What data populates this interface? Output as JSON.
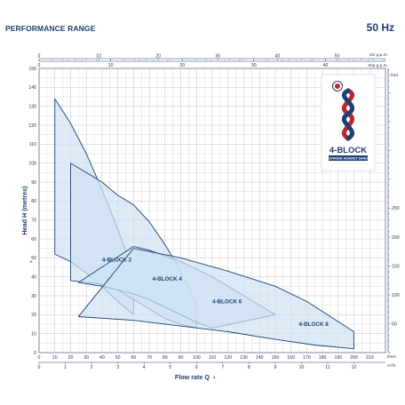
{
  "header": {
    "title": "PERFORMANCE RANGE",
    "frequency": "50 Hz"
  },
  "colors": {
    "accent": "#1f3f73",
    "fill": "#cfe3f3",
    "curve": "#1f3f73",
    "grid": "#c4c4c4"
  },
  "logo": {
    "text": "4-BLOCK",
    "tagline": "STRONG AGAINST SAND"
  },
  "chart_data": {
    "type": "area",
    "xlabel": "Flow rate Q",
    "ylabel": "Head H (metres)",
    "xlim": [
      0,
      220
    ],
    "ylim": [
      0,
      150
    ],
    "x_ticks": [
      0,
      10,
      20,
      30,
      40,
      50,
      60,
      70,
      80,
      90,
      100,
      110,
      120,
      130,
      140,
      150,
      160,
      170,
      180,
      190,
      200,
      210
    ],
    "y_ticks": [
      0,
      10,
      20,
      30,
      40,
      50,
      60,
      70,
      80,
      90,
      100,
      110,
      120,
      130,
      140,
      150
    ],
    "x_unit": "l/min",
    "x_unit_secondary": "m³/h",
    "x_secondary_ticks": [
      0,
      1,
      2,
      3,
      4,
      5,
      6,
      7,
      8,
      9,
      10,
      11,
      12
    ],
    "top_axis_us": {
      "unit": "US g.p.m.",
      "ticks": [
        0,
        10,
        20,
        30,
        40,
        50
      ]
    },
    "top_axis_imp": {
      "unit": "Imp g.p.m.",
      "ticks": [
        0,
        10,
        20,
        30,
        40
      ]
    },
    "right_axis": {
      "unit": "feet",
      "ticks": [
        50,
        100,
        150,
        200,
        250
      ]
    },
    "grid": true,
    "series": [
      {
        "name": "4-BLOCK 2",
        "upper": [
          [
            10,
            134
          ],
          [
            20,
            121
          ],
          [
            30,
            105
          ],
          [
            40,
            86
          ],
          [
            50,
            65
          ],
          [
            60,
            42
          ]
        ],
        "lower": [
          [
            10,
            52
          ],
          [
            20,
            48
          ],
          [
            30,
            42
          ],
          [
            40,
            35
          ],
          [
            50,
            27
          ],
          [
            60,
            20
          ]
        ],
        "label_at": [
          40,
          48
        ]
      },
      {
        "name": "4-BLOCK 4",
        "upper": [
          [
            20,
            100
          ],
          [
            30,
            95
          ],
          [
            40,
            90
          ],
          [
            50,
            83
          ],
          [
            60,
            78
          ],
          [
            70,
            69
          ],
          [
            80,
            57
          ],
          [
            90,
            43
          ],
          [
            100,
            26
          ]
        ],
        "lower": [
          [
            20,
            38
          ],
          [
            40,
            36
          ],
          [
            50,
            33
          ],
          [
            60,
            28
          ],
          [
            70,
            23
          ],
          [
            80,
            18
          ],
          [
            90,
            15
          ],
          [
            100,
            13
          ]
        ],
        "label_at": [
          72,
          38
        ]
      },
      {
        "name": "4-BLOCK 6",
        "upper": [
          [
            60,
            56
          ],
          [
            70,
            54
          ],
          [
            80,
            51
          ],
          [
            90,
            48
          ],
          [
            100,
            44
          ],
          [
            110,
            40
          ],
          [
            120,
            35
          ],
          [
            130,
            30
          ],
          [
            140,
            25
          ],
          [
            150,
            20
          ]
        ],
        "lower": [
          [
            25,
            37
          ],
          [
            40,
            35
          ],
          [
            50,
            33
          ],
          [
            60,
            31
          ],
          [
            70,
            28
          ],
          [
            80,
            24
          ],
          [
            90,
            20
          ],
          [
            100,
            16
          ],
          [
            110,
            13
          ]
        ],
        "label_at": [
          110,
          26
        ]
      },
      {
        "name": "4-BLOCK 8",
        "upper": [
          [
            60,
            55
          ],
          [
            90,
            50
          ],
          [
            120,
            43
          ],
          [
            150,
            35
          ],
          [
            170,
            27
          ],
          [
            185,
            19
          ],
          [
            200,
            11
          ]
        ],
        "lower": [
          [
            25,
            19
          ],
          [
            60,
            17
          ],
          [
            90,
            14
          ],
          [
            120,
            11
          ],
          [
            150,
            7
          ],
          [
            175,
            4
          ],
          [
            200,
            2
          ]
        ],
        "label_at": [
          165,
          14
        ]
      }
    ]
  }
}
